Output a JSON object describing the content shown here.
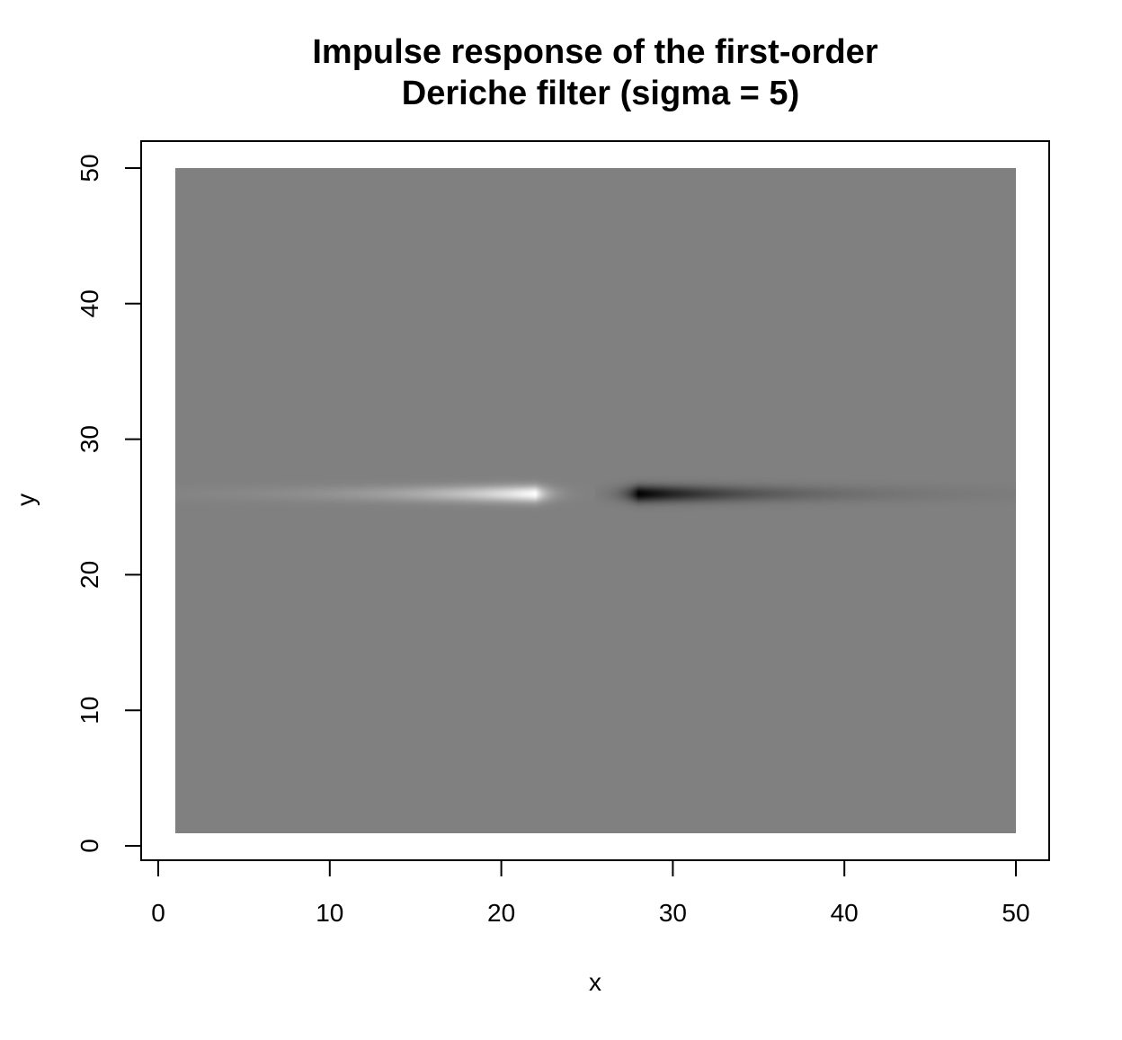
{
  "chart_data": {
    "type": "heatmap",
    "title_lines": [
      "Impulse response of the first-order",
      "Deriche filter (sigma = 5)"
    ],
    "xlabel": "x",
    "ylabel": "y",
    "x_range": [
      1,
      50
    ],
    "y_range": [
      1,
      50
    ],
    "xlim": [
      -1,
      52
    ],
    "ylim": [
      -1,
      52
    ],
    "x_ticks": [
      0,
      10,
      20,
      30,
      40,
      50
    ],
    "y_ticks": [
      0,
      10,
      20,
      30,
      40,
      50
    ],
    "grid": false,
    "colormap": "grayscale",
    "background_value_color": "#808080",
    "impulse": {
      "center": [
        25.5,
        26
      ],
      "sigma": 5,
      "positive_side": "left",
      "positive_peak_x": 22,
      "negative_peak_x": 28
    }
  }
}
